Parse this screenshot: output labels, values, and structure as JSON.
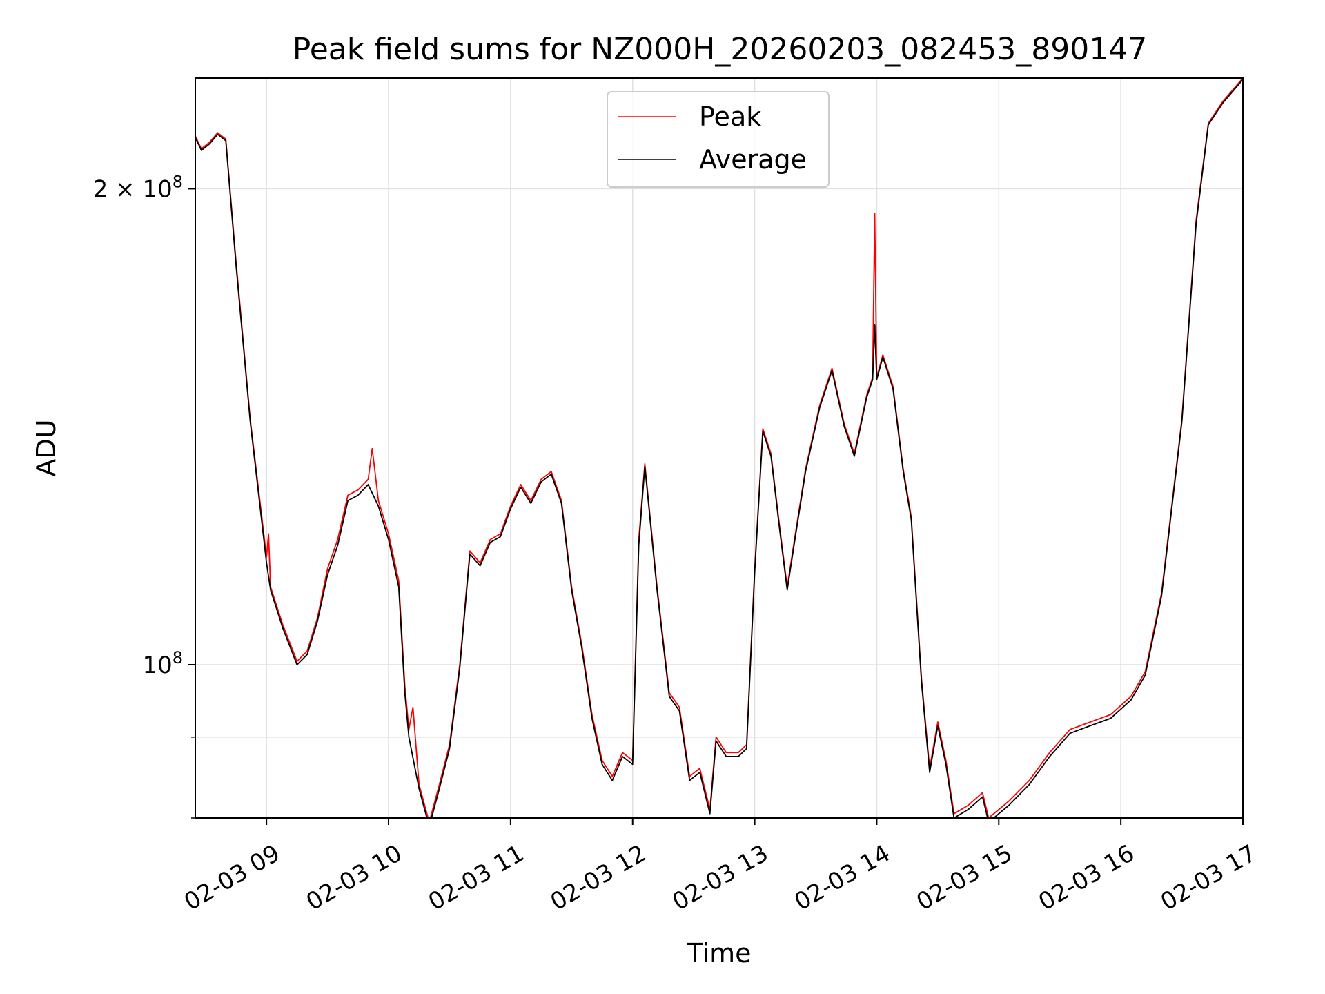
{
  "chart_data": {
    "type": "line",
    "title": "Peak field sums for NZ000H_20260203_082453_890147",
    "xlabel": "Time",
    "ylabel": "ADU",
    "yscale": "log",
    "xlim": [
      "2026-02-03 08:25",
      "2026-02-03 17:00"
    ],
    "ylim": [
      80000000,
      235000000
    ],
    "x_ticks": [
      "02-03 09",
      "02-03 10",
      "02-03 11",
      "02-03 12",
      "02-03 13",
      "02-03 14",
      "02-03 15",
      "02-03 16",
      "02-03 17"
    ],
    "y_ticks": [
      {
        "value": 100000000,
        "label": "10",
        "exp": "8",
        "mult": ""
      },
      {
        "value": 200000000,
        "label": "10",
        "exp": "8",
        "mult": "2 × "
      }
    ],
    "y_minor_ticks": [
      80000000,
      90000000
    ],
    "grid": true,
    "legend": {
      "position": "top-center"
    },
    "series": [
      {
        "name": "Peak",
        "color": "#ff0000",
        "points": [
          [
            "2026-02-03 08:25",
            216000000
          ],
          [
            "2026-02-03 08:28",
            212000000
          ],
          [
            "2026-02-03 08:32",
            214000000
          ],
          [
            "2026-02-03 08:36",
            217000000
          ],
          [
            "2026-02-03 08:40",
            215000000
          ],
          [
            "2026-02-03 08:45",
            180000000
          ],
          [
            "2026-02-03 08:52",
            143000000
          ],
          [
            "2026-02-03 09:00",
            117000000
          ],
          [
            "2026-02-03 09:01",
            121000000
          ],
          [
            "2026-02-03 09:02",
            112000000
          ],
          [
            "2026-02-03 09:08",
            106000000
          ],
          [
            "2026-02-03 09:15",
            100500000
          ],
          [
            "2026-02-03 09:20",
            102000000
          ],
          [
            "2026-02-03 09:25",
            107000000
          ],
          [
            "2026-02-03 09:30",
            115000000
          ],
          [
            "2026-02-03 09:35",
            120000000
          ],
          [
            "2026-02-03 09:40",
            128000000
          ],
          [
            "2026-02-03 09:45",
            129000000
          ],
          [
            "2026-02-03 09:50",
            131000000
          ],
          [
            "2026-02-03 09:52",
            137000000
          ],
          [
            "2026-02-03 09:55",
            127000000
          ],
          [
            "2026-02-03 10:00",
            121000000
          ],
          [
            "2026-02-03 10:05",
            113000000
          ],
          [
            "2026-02-03 10:08",
            97000000
          ],
          [
            "2026-02-03 10:10",
            91000000
          ],
          [
            "2026-02-03 10:12",
            94000000
          ],
          [
            "2026-02-03 10:15",
            84000000
          ],
          [
            "2026-02-03 10:20",
            79500000
          ],
          [
            "2026-02-03 10:25",
            84000000
          ],
          [
            "2026-02-03 10:30",
            89000000
          ],
          [
            "2026-02-03 10:35",
            100000000
          ],
          [
            "2026-02-03 10:40",
            118000000
          ],
          [
            "2026-02-03 10:45",
            116000000
          ],
          [
            "2026-02-03 10:50",
            120000000
          ],
          [
            "2026-02-03 10:55",
            121000000
          ],
          [
            "2026-02-03 11:00",
            126000000
          ],
          [
            "2026-02-03 11:05",
            130000000
          ],
          [
            "2026-02-03 11:10",
            127000000
          ],
          [
            "2026-02-03 11:15",
            131000000
          ],
          [
            "2026-02-03 11:20",
            132500000
          ],
          [
            "2026-02-03 11:25",
            127000000
          ],
          [
            "2026-02-03 11:30",
            112000000
          ],
          [
            "2026-02-03 11:35",
            103000000
          ],
          [
            "2026-02-03 11:40",
            93000000
          ],
          [
            "2026-02-03 11:45",
            87000000
          ],
          [
            "2026-02-03 11:50",
            85000000
          ],
          [
            "2026-02-03 11:55",
            88000000
          ],
          [
            "2026-02-03 12:00",
            87000000
          ],
          [
            "2026-02-03 12:03",
            120000000
          ],
          [
            "2026-02-03 12:06",
            134000000
          ],
          [
            "2026-02-03 12:12",
            112000000
          ],
          [
            "2026-02-03 12:18",
            96000000
          ],
          [
            "2026-02-03 12:23",
            94000000
          ],
          [
            "2026-02-03 12:28",
            85000000
          ],
          [
            "2026-02-03 12:33",
            86000000
          ],
          [
            "2026-02-03 12:38",
            81000000
          ],
          [
            "2026-02-03 12:41",
            90000000
          ],
          [
            "2026-02-03 12:46",
            88000000
          ],
          [
            "2026-02-03 12:52",
            88000000
          ],
          [
            "2026-02-03 12:56",
            89000000
          ],
          [
            "2026-02-03 13:00",
            115000000
          ],
          [
            "2026-02-03 13:04",
            141000000
          ],
          [
            "2026-02-03 13:08",
            136000000
          ],
          [
            "2026-02-03 13:12",
            123000000
          ],
          [
            "2026-02-03 13:16",
            112000000
          ],
          [
            "2026-02-03 13:20",
            121000000
          ],
          [
            "2026-02-03 13:25",
            133000000
          ],
          [
            "2026-02-03 13:32",
            146000000
          ],
          [
            "2026-02-03 13:38",
            154000000
          ],
          [
            "2026-02-03 13:44",
            142000000
          ],
          [
            "2026-02-03 13:49",
            136000000
          ],
          [
            "2026-02-03 13:55",
            148000000
          ],
          [
            "2026-02-03 13:58",
            152000000
          ],
          [
            "2026-02-03 13:59",
            193000000
          ],
          [
            "2026-02-03 14:00",
            152000000
          ],
          [
            "2026-02-03 14:03",
            157000000
          ],
          [
            "2026-02-03 14:08",
            150000000
          ],
          [
            "2026-02-03 14:13",
            133000000
          ],
          [
            "2026-02-03 14:17",
            124000000
          ],
          [
            "2026-02-03 14:22",
            98000000
          ],
          [
            "2026-02-03 14:26",
            86000000
          ],
          [
            "2026-02-03 14:30",
            92000000
          ],
          [
            "2026-02-03 14:34",
            87000000
          ],
          [
            "2026-02-03 14:38",
            80500000
          ],
          [
            "2026-02-03 14:45",
            81500000
          ],
          [
            "2026-02-03 14:52",
            83000000
          ],
          [
            "2026-02-03 14:55",
            80000000
          ],
          [
            "2026-02-03 15:05",
            82000000
          ],
          [
            "2026-02-03 15:15",
            84500000
          ],
          [
            "2026-02-03 15:25",
            88000000
          ],
          [
            "2026-02-03 15:35",
            91000000
          ],
          [
            "2026-02-03 15:45",
            92000000
          ],
          [
            "2026-02-03 15:55",
            93000000
          ],
          [
            "2026-02-03 16:05",
            95500000
          ],
          [
            "2026-02-03 16:12",
            99000000
          ],
          [
            "2026-02-03 16:20",
            111000000
          ],
          [
            "2026-02-03 16:30",
            143000000
          ],
          [
            "2026-02-03 16:37",
            191000000
          ],
          [
            "2026-02-03 16:43",
            220000000
          ],
          [
            "2026-02-03 16:50",
            227000000
          ],
          [
            "2026-02-03 17:00",
            235000000
          ]
        ]
      },
      {
        "name": "Average",
        "color": "#000000",
        "points": [
          [
            "2026-02-03 08:25",
            215500000
          ],
          [
            "2026-02-03 08:28",
            211500000
          ],
          [
            "2026-02-03 08:32",
            213500000
          ],
          [
            "2026-02-03 08:36",
            216500000
          ],
          [
            "2026-02-03 08:40",
            214500000
          ],
          [
            "2026-02-03 08:45",
            179000000
          ],
          [
            "2026-02-03 08:52",
            142500000
          ],
          [
            "2026-02-03 09:00",
            116000000
          ],
          [
            "2026-02-03 09:02",
            111500000
          ],
          [
            "2026-02-03 09:08",
            105500000
          ],
          [
            "2026-02-03 09:15",
            100000000
          ],
          [
            "2026-02-03 09:20",
            101500000
          ],
          [
            "2026-02-03 09:25",
            106500000
          ],
          [
            "2026-02-03 09:30",
            114000000
          ],
          [
            "2026-02-03 09:35",
            119000000
          ],
          [
            "2026-02-03 09:40",
            127000000
          ],
          [
            "2026-02-03 09:45",
            128000000
          ],
          [
            "2026-02-03 09:50",
            130000000
          ],
          [
            "2026-02-03 09:55",
            126000000
          ],
          [
            "2026-02-03 10:00",
            120000000
          ],
          [
            "2026-02-03 10:05",
            112000000
          ],
          [
            "2026-02-03 10:08",
            96000000
          ],
          [
            "2026-02-03 10:10",
            90000000
          ],
          [
            "2026-02-03 10:15",
            83500000
          ],
          [
            "2026-02-03 10:20",
            79000000
          ],
          [
            "2026-02-03 10:25",
            83500000
          ],
          [
            "2026-02-03 10:30",
            88500000
          ],
          [
            "2026-02-03 10:35",
            99500000
          ],
          [
            "2026-02-03 10:40",
            117500000
          ],
          [
            "2026-02-03 10:45",
            115500000
          ],
          [
            "2026-02-03 10:50",
            119500000
          ],
          [
            "2026-02-03 10:55",
            120500000
          ],
          [
            "2026-02-03 11:00",
            125500000
          ],
          [
            "2026-02-03 11:05",
            129500000
          ],
          [
            "2026-02-03 11:10",
            126500000
          ],
          [
            "2026-02-03 11:15",
            130500000
          ],
          [
            "2026-02-03 11:20",
            132000000
          ],
          [
            "2026-02-03 11:25",
            126500000
          ],
          [
            "2026-02-03 11:30",
            111500000
          ],
          [
            "2026-02-03 11:35",
            102500000
          ],
          [
            "2026-02-03 11:40",
            92500000
          ],
          [
            "2026-02-03 11:45",
            86500000
          ],
          [
            "2026-02-03 11:50",
            84500000
          ],
          [
            "2026-02-03 11:55",
            87500000
          ],
          [
            "2026-02-03 12:00",
            86500000
          ],
          [
            "2026-02-03 12:03",
            119000000
          ],
          [
            "2026-02-03 12:06",
            133500000
          ],
          [
            "2026-02-03 12:12",
            111500000
          ],
          [
            "2026-02-03 12:18",
            95500000
          ],
          [
            "2026-02-03 12:23",
            93500000
          ],
          [
            "2026-02-03 12:28",
            84500000
          ],
          [
            "2026-02-03 12:33",
            85500000
          ],
          [
            "2026-02-03 12:38",
            80500000
          ],
          [
            "2026-02-03 12:41",
            89500000
          ],
          [
            "2026-02-03 12:46",
            87500000
          ],
          [
            "2026-02-03 12:52",
            87500000
          ],
          [
            "2026-02-03 12:56",
            88500000
          ],
          [
            "2026-02-03 13:00",
            114500000
          ],
          [
            "2026-02-03 13:04",
            140500000
          ],
          [
            "2026-02-03 13:08",
            135500000
          ],
          [
            "2026-02-03 13:12",
            122500000
          ],
          [
            "2026-02-03 13:16",
            111500000
          ],
          [
            "2026-02-03 13:20",
            120500000
          ],
          [
            "2026-02-03 13:25",
            132500000
          ],
          [
            "2026-02-03 13:32",
            145500000
          ],
          [
            "2026-02-03 13:38",
            153500000
          ],
          [
            "2026-02-03 13:44",
            141500000
          ],
          [
            "2026-02-03 13:49",
            135500000
          ],
          [
            "2026-02-03 13:55",
            147500000
          ],
          [
            "2026-02-03 13:58",
            151500000
          ],
          [
            "2026-02-03 13:59",
            164000000
          ],
          [
            "2026-02-03 14:00",
            151500000
          ],
          [
            "2026-02-03 14:03",
            156500000
          ],
          [
            "2026-02-03 14:08",
            149500000
          ],
          [
            "2026-02-03 14:13",
            132500000
          ],
          [
            "2026-02-03 14:17",
            123500000
          ],
          [
            "2026-02-03 14:22",
            97500000
          ],
          [
            "2026-02-03 14:26",
            85500000
          ],
          [
            "2026-02-03 14:30",
            91500000
          ],
          [
            "2026-02-03 14:34",
            86500000
          ],
          [
            "2026-02-03 14:38",
            80000000
          ],
          [
            "2026-02-03 14:45",
            81000000
          ],
          [
            "2026-02-03 14:52",
            82500000
          ],
          [
            "2026-02-03 14:55",
            79500000
          ],
          [
            "2026-02-03 15:05",
            81500000
          ],
          [
            "2026-02-03 15:15",
            84000000
          ],
          [
            "2026-02-03 15:25",
            87500000
          ],
          [
            "2026-02-03 15:35",
            90500000
          ],
          [
            "2026-02-03 15:45",
            91500000
          ],
          [
            "2026-02-03 15:55",
            92500000
          ],
          [
            "2026-02-03 16:05",
            95000000
          ],
          [
            "2026-02-03 16:12",
            98500000
          ],
          [
            "2026-02-03 16:20",
            110500000
          ],
          [
            "2026-02-03 16:30",
            142500000
          ],
          [
            "2026-02-03 16:37",
            190000000
          ],
          [
            "2026-02-03 16:43",
            219500000
          ],
          [
            "2026-02-03 16:50",
            226500000
          ],
          [
            "2026-02-03 17:00",
            234500000
          ]
        ]
      }
    ]
  }
}
